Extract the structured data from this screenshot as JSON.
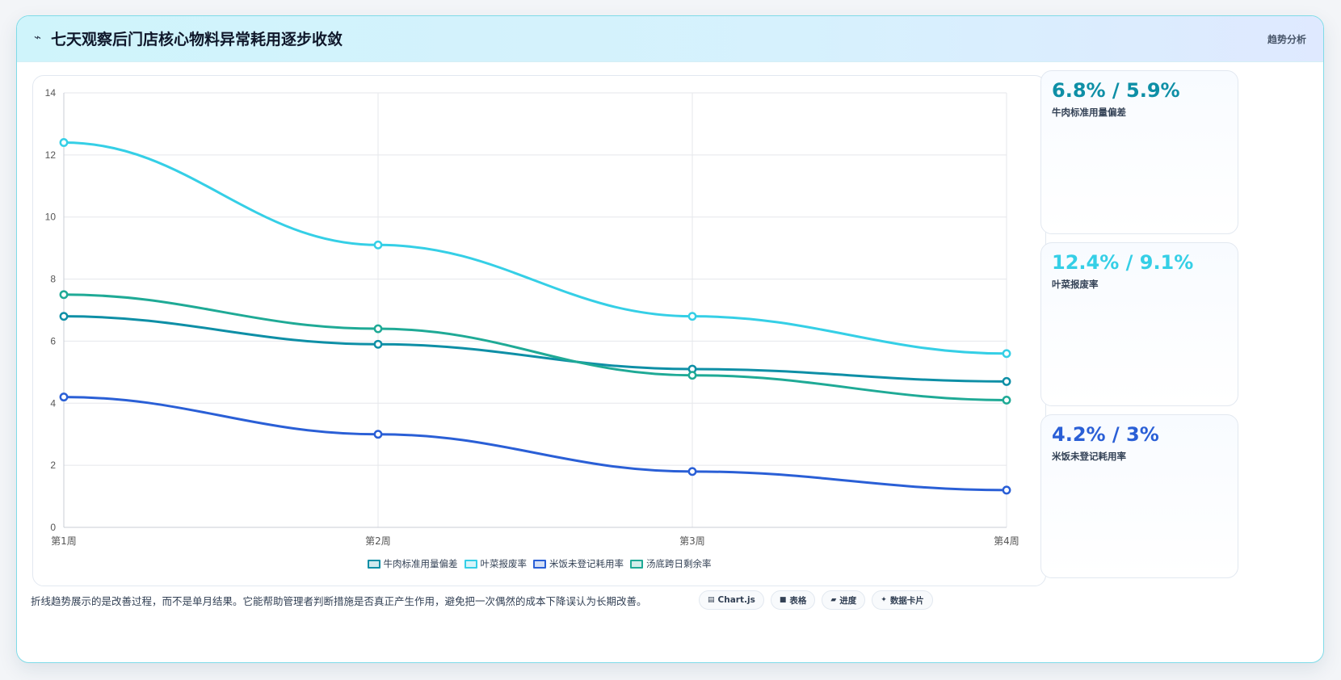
{
  "header": {
    "icon": "chart-spark-icon",
    "title": "七天观察后门店核心物料异常耗用逐步收敛",
    "tag": "趋势分析"
  },
  "chart_data": {
    "type": "line",
    "categories": [
      "第1周",
      "第2周",
      "第3周",
      "第4周"
    ],
    "ylim": [
      0,
      14
    ],
    "yticks": [
      0,
      2,
      4,
      6,
      8,
      10,
      12,
      14
    ],
    "grid": true,
    "legend_position": "bottom",
    "series": [
      {
        "name": "牛肉标准用量偏差",
        "color": "#0e8fa6",
        "values": [
          6.8,
          5.9,
          5.1,
          4.7
        ]
      },
      {
        "name": "叶菜报废率",
        "color": "#35cfe6",
        "values": [
          12.4,
          9.1,
          6.8,
          5.6
        ]
      },
      {
        "name": "米饭未登记耗用率",
        "color": "#2a5fd6",
        "values": [
          4.2,
          3.0,
          1.8,
          1.2
        ]
      },
      {
        "name": "汤底跨日剩余率",
        "color": "#1faa96",
        "values": [
          7.5,
          6.4,
          4.9,
          4.1
        ]
      }
    ]
  },
  "stats": [
    {
      "value": "6.8% / 5.9%",
      "label": "牛肉标准用量偏差",
      "color": "#0e8fa6"
    },
    {
      "value": "12.4% / 9.1%",
      "label": "叶菜报废率",
      "color": "#35cfe6"
    },
    {
      "value": "4.2% / 3%",
      "label": "米饭未登记耗用率",
      "color": "#2a5fd6"
    }
  ],
  "footer": {
    "text": "折线趋势展示的是改善过程，而不是单月结果。它能帮助管理者判断措施是否真正产生作用，避免把一次偶然的成本下降误认为长期改善。"
  },
  "chips": [
    {
      "icon": "chart-icon",
      "glyph": "▤",
      "label": "Chart.js"
    },
    {
      "icon": "table-icon",
      "glyph": "■",
      "label": "表格"
    },
    {
      "icon": "progress-icon",
      "glyph": "▰",
      "label": "进度"
    },
    {
      "icon": "sparkle-icon",
      "glyph": "✦",
      "label": "数据卡片"
    }
  ]
}
